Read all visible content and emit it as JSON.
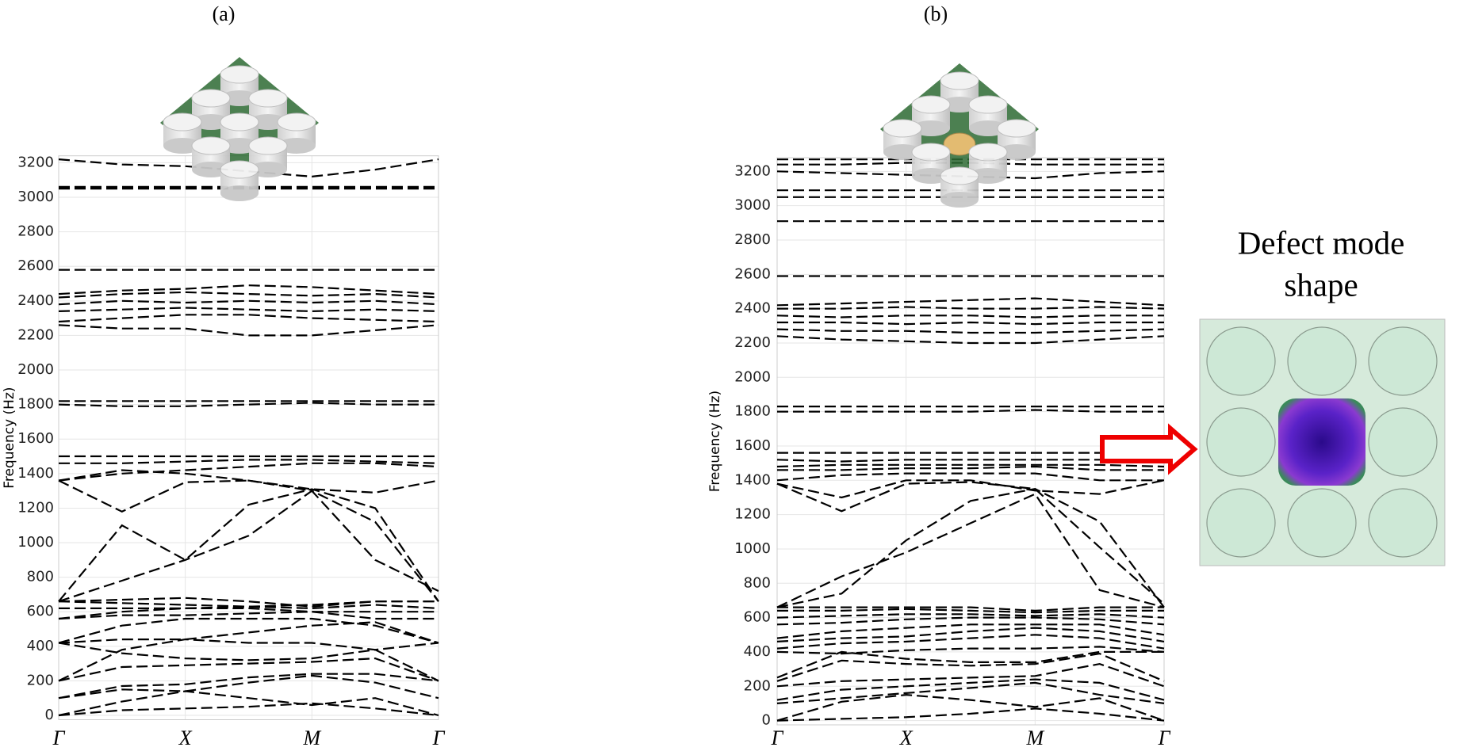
{
  "chart_data": [
    {
      "type": "line",
      "panel_label": "(a)",
      "ylabel": "Frequency (Hz)",
      "color": "#000000",
      "line_style": "dashed",
      "grid": true,
      "x": [
        0,
        0.5,
        1,
        1.5,
        2,
        2.5,
        3
      ],
      "xlim": [
        0,
        3
      ],
      "xticks": [
        {
          "value": 0,
          "label": "Γ"
        },
        {
          "value": 1,
          "label": "X"
        },
        {
          "value": 2,
          "label": "M"
        },
        {
          "value": 3,
          "label": "Γ"
        }
      ],
      "ylim": [
        -25,
        3240
      ],
      "yticks": [
        0,
        200,
        400,
        600,
        800,
        1000,
        1200,
        1400,
        1600,
        1800,
        2000,
        2200,
        2400,
        2600,
        2800,
        3000,
        3200
      ],
      "series": [
        {
          "values": [
            0,
            80,
            140,
            100,
            60,
            100,
            0
          ]
        },
        {
          "values": [
            0,
            30,
            40,
            50,
            70,
            40,
            0
          ]
        },
        {
          "values": [
            100,
            150,
            140,
            190,
            230,
            190,
            100
          ]
        },
        {
          "values": [
            100,
            170,
            180,
            220,
            240,
            240,
            200
          ]
        },
        {
          "values": [
            200,
            280,
            290,
            300,
            310,
            330,
            200
          ]
        },
        {
          "values": [
            200,
            380,
            440,
            420,
            420,
            380,
            420
          ]
        },
        {
          "values": [
            420,
            360,
            330,
            320,
            330,
            380,
            200
          ]
        },
        {
          "values": [
            420,
            440,
            440,
            480,
            520,
            540,
            420
          ]
        },
        {
          "values": [
            420,
            520,
            560,
            560,
            560,
            520,
            420
          ]
        },
        {
          "values": [
            560,
            580,
            580,
            590,
            600,
            560,
            560
          ]
        },
        {
          "values": [
            560,
            600,
            620,
            620,
            600,
            600,
            600
          ]
        },
        {
          "values": [
            620,
            620,
            620,
            630,
            620,
            640,
            620
          ]
        },
        {
          "values": [
            660,
            650,
            640,
            630,
            640,
            660,
            660
          ]
        },
        {
          "values": [
            660,
            670,
            680,
            660,
            630,
            660,
            660
          ]
        },
        {
          "values": [
            660,
            780,
            900,
            1040,
            1300,
            1120,
            660
          ]
        },
        {
          "values": [
            660,
            1100,
            900,
            1220,
            1310,
            1200,
            660
          ]
        },
        {
          "values": [
            1360,
            1180,
            1350,
            1360,
            1310,
            1290,
            1360
          ]
        },
        {
          "values": [
            1360,
            1420,
            1400,
            1360,
            1300,
            900,
            720
          ]
        },
        {
          "values": [
            1360,
            1400,
            1420,
            1440,
            1460,
            1460,
            1440
          ]
        },
        {
          "values": [
            1460,
            1460,
            1470,
            1480,
            1480,
            1470,
            1460
          ]
        },
        {
          "values": [
            1500,
            1500,
            1500,
            1500,
            1500,
            1500,
            1500
          ]
        },
        {
          "values": [
            1800,
            1790,
            1790,
            1800,
            1810,
            1800,
            1800
          ]
        },
        {
          "values": [
            1820,
            1820,
            1820,
            1820,
            1820,
            1820,
            1820
          ]
        },
        {
          "values": [
            2260,
            2240,
            2240,
            2200,
            2200,
            2230,
            2260
          ]
        },
        {
          "values": [
            2280,
            2300,
            2320,
            2320,
            2300,
            2290,
            2280
          ]
        },
        {
          "values": [
            2340,
            2350,
            2360,
            2350,
            2340,
            2350,
            2340
          ]
        },
        {
          "values": [
            2380,
            2400,
            2390,
            2400,
            2390,
            2400,
            2380
          ]
        },
        {
          "values": [
            2420,
            2440,
            2450,
            2440,
            2430,
            2440,
            2420
          ]
        },
        {
          "values": [
            2440,
            2460,
            2470,
            2490,
            2480,
            2460,
            2440
          ]
        },
        {
          "values": [
            2580,
            2580,
            2580,
            2580,
            2580,
            2580,
            2580
          ]
        },
        {
          "values": [
            3050,
            3050,
            3050,
            3050,
            3050,
            3050,
            3050
          ]
        },
        {
          "values": [
            3060,
            3060,
            3060,
            3060,
            3060,
            3060,
            3060
          ]
        },
        {
          "values": [
            3220,
            3190,
            3180,
            3150,
            3120,
            3160,
            3220
          ]
        }
      ]
    },
    {
      "type": "line",
      "panel_label": "(b)",
      "ylabel": "Frequency (Hz)",
      "color": "#000000",
      "line_style": "dashed",
      "grid": true,
      "x": [
        0,
        0.5,
        1,
        1.5,
        2,
        2.5,
        3
      ],
      "xlim": [
        0,
        3
      ],
      "xticks": [
        {
          "value": 0,
          "label": "Γ"
        },
        {
          "value": 1,
          "label": "X"
        },
        {
          "value": 2,
          "label": "M"
        },
        {
          "value": 3,
          "label": "Γ"
        }
      ],
      "ylim": [
        -25,
        3280
      ],
      "yticks": [
        0,
        200,
        400,
        600,
        800,
        1000,
        1200,
        1400,
        1600,
        1800,
        2000,
        2200,
        2400,
        2600,
        2800,
        3000,
        3200
      ],
      "annotation": [
        "Defect mode",
        "shape"
      ],
      "series": [
        {
          "values": [
            0,
            10,
            20,
            40,
            70,
            40,
            0
          ]
        },
        {
          "values": [
            0,
            110,
            150,
            120,
            80,
            130,
            0
          ]
        },
        {
          "values": [
            100,
            130,
            160,
            190,
            220,
            150,
            100
          ]
        },
        {
          "values": [
            120,
            180,
            200,
            220,
            240,
            220,
            120
          ]
        },
        {
          "values": [
            200,
            230,
            240,
            250,
            260,
            330,
            200
          ]
        },
        {
          "values": [
            230,
            350,
            330,
            320,
            330,
            390,
            230
          ]
        },
        {
          "values": [
            250,
            400,
            360,
            340,
            340,
            400,
            400
          ]
        },
        {
          "values": [
            400,
            390,
            410,
            420,
            420,
            430,
            400
          ]
        },
        {
          "values": [
            420,
            450,
            460,
            480,
            500,
            480,
            420
          ]
        },
        {
          "values": [
            460,
            480,
            490,
            520,
            540,
            520,
            460
          ]
        },
        {
          "values": [
            480,
            520,
            540,
            560,
            560,
            560,
            500
          ]
        },
        {
          "values": [
            560,
            570,
            590,
            600,
            600,
            590,
            560
          ]
        },
        {
          "values": [
            600,
            610,
            620,
            620,
            610,
            620,
            600
          ]
        },
        {
          "values": [
            640,
            640,
            650,
            640,
            630,
            640,
            640
          ]
        },
        {
          "values": [
            660,
            660,
            660,
            660,
            640,
            660,
            660
          ]
        },
        {
          "values": [
            660,
            840,
            980,
            1150,
            1320,
            760,
            660
          ]
        },
        {
          "values": [
            660,
            740,
            1050,
            1280,
            1350,
            1160,
            660
          ]
        },
        {
          "values": [
            1380,
            1220,
            1380,
            1390,
            1350,
            1010,
            680
          ]
        },
        {
          "values": [
            1380,
            1300,
            1400,
            1400,
            1340,
            1320,
            1400
          ]
        },
        {
          "values": [
            1400,
            1430,
            1440,
            1440,
            1440,
            1400,
            1400
          ]
        },
        {
          "values": [
            1460,
            1460,
            1470,
            1470,
            1480,
            1460,
            1460
          ]
        },
        {
          "values": [
            1480,
            1490,
            1490,
            1490,
            1490,
            1490,
            1480
          ]
        },
        {
          "values": [
            1520,
            1510,
            1520,
            1520,
            1520,
            1520,
            1520
          ]
        },
        {
          "values": [
            1560,
            1560,
            1560,
            1560,
            1560,
            1560,
            1560
          ]
        },
        {
          "values": [
            1800,
            1800,
            1800,
            1800,
            1810,
            1800,
            1800
          ]
        },
        {
          "values": [
            1830,
            1830,
            1830,
            1830,
            1830,
            1830,
            1830
          ]
        },
        {
          "values": [
            2240,
            2220,
            2210,
            2200,
            2200,
            2220,
            2240
          ]
        },
        {
          "values": [
            2280,
            2270,
            2270,
            2260,
            2260,
            2270,
            2280
          ]
        },
        {
          "values": [
            2320,
            2320,
            2310,
            2320,
            2310,
            2320,
            2320
          ]
        },
        {
          "values": [
            2360,
            2350,
            2360,
            2360,
            2350,
            2360,
            2360
          ]
        },
        {
          "values": [
            2400,
            2400,
            2410,
            2400,
            2400,
            2410,
            2400
          ]
        },
        {
          "values": [
            2420,
            2430,
            2440,
            2450,
            2460,
            2440,
            2420
          ]
        },
        {
          "values": [
            2590,
            2590,
            2590,
            2590,
            2590,
            2590,
            2590
          ]
        },
        {
          "values": [
            2910,
            2910,
            2910,
            2910,
            2910,
            2910,
            2910
          ]
        },
        {
          "values": [
            3050,
            3050,
            3050,
            3050,
            3050,
            3050,
            3050
          ]
        },
        {
          "values": [
            3090,
            3090,
            3090,
            3090,
            3090,
            3090,
            3090
          ]
        },
        {
          "values": [
            3200,
            3190,
            3180,
            3170,
            3160,
            3190,
            3200
          ]
        },
        {
          "values": [
            3240,
            3240,
            3250,
            3250,
            3240,
            3240,
            3240
          ]
        },
        {
          "values": [
            3270,
            3270,
            3270,
            3270,
            3270,
            3270,
            3270
          ]
        }
      ]
    }
  ]
}
